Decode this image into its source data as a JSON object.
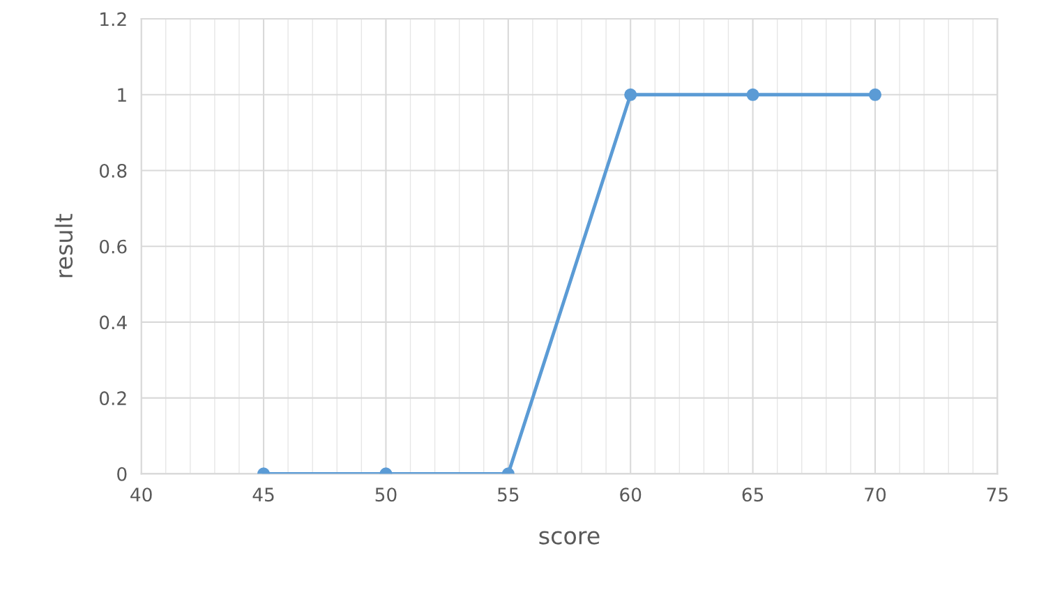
{
  "chart_data": {
    "type": "line",
    "xlabel": "score",
    "ylabel": "result",
    "series": [
      {
        "color": "#5b9bd5",
        "x": [
          45,
          50,
          55,
          60,
          65,
          70
        ],
        "values": [
          0,
          0,
          0,
          1,
          1,
          1
        ]
      }
    ],
    "xlim": [
      40,
      75
    ],
    "xticks": [
      40,
      45,
      50,
      55,
      60,
      65,
      70,
      75
    ],
    "ylim": [
      0,
      1.2
    ],
    "yticks": [
      0,
      0.2,
      0.4,
      0.6,
      0.8,
      1,
      1.2
    ],
    "grid": true,
    "marker": "circle",
    "line_style": "solid"
  }
}
